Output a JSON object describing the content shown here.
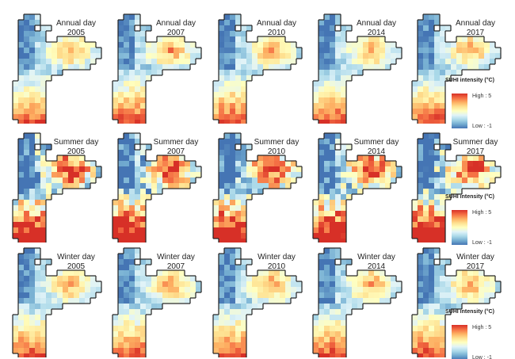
{
  "panels": [
    {
      "label": "Annual day",
      "year": "2005"
    },
    {
      "label": "Annual day",
      "year": "2007"
    },
    {
      "label": "Annual day",
      "year": "2010"
    },
    {
      "label": "Annual day",
      "year": "2014"
    },
    {
      "label": "Annual day",
      "year": "2017"
    },
    {
      "label": "Summer day",
      "year": "2005"
    },
    {
      "label": "Summer day",
      "year": "2007"
    },
    {
      "label": "Summer day",
      "year": "2010"
    },
    {
      "label": "Summer day",
      "year": "2014"
    },
    {
      "label": "Summer day",
      "year": "2017"
    },
    {
      "label": "Winter day",
      "year": "2005"
    },
    {
      "label": "Winter day",
      "year": "2007"
    },
    {
      "label": "Winter day",
      "year": "2010"
    },
    {
      "label": "Winter day",
      "year": "2014"
    },
    {
      "label": "Winter day",
      "year": "2017"
    }
  ],
  "legend": {
    "title": "SUHI intensity (°C)",
    "high": "High : 5",
    "low": "Low : -1",
    "range": [
      -1,
      5
    ],
    "colors": [
      "#4575b4",
      "#74add1",
      "#abd9e9",
      "#e0f3f8",
      "#ffffbf",
      "#fee090",
      "#fdae61",
      "#f46d43",
      "#d73027"
    ]
  }
}
